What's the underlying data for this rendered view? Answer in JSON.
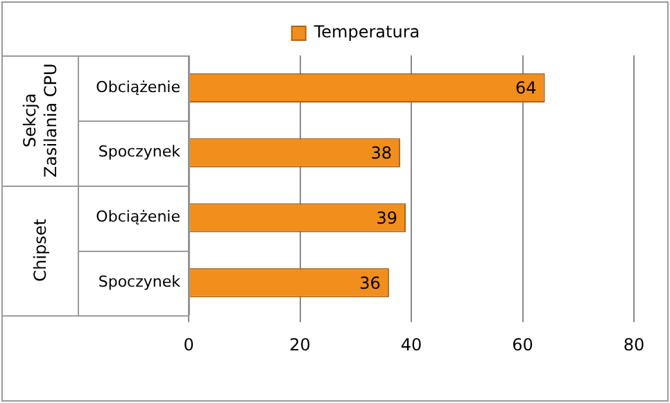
{
  "chart_data": {
    "type": "bar",
    "orientation": "horizontal",
    "categories": [
      "Obciążenie",
      "Spoczynek",
      "Obciążenie",
      "Spoczynek"
    ],
    "series": [
      {
        "name": "Temperatura",
        "color": "#f28e1c",
        "values": [
          64,
          38,
          39,
          36
        ]
      }
    ],
    "xlim": [
      0,
      80
    ],
    "xticks": [
      0,
      20,
      40,
      60,
      80
    ],
    "grid": "x",
    "legend": "top",
    "data_labels": true,
    "annotations": [
      "Sekcja Zasilania CPU",
      "Chipset"
    ]
  }
}
